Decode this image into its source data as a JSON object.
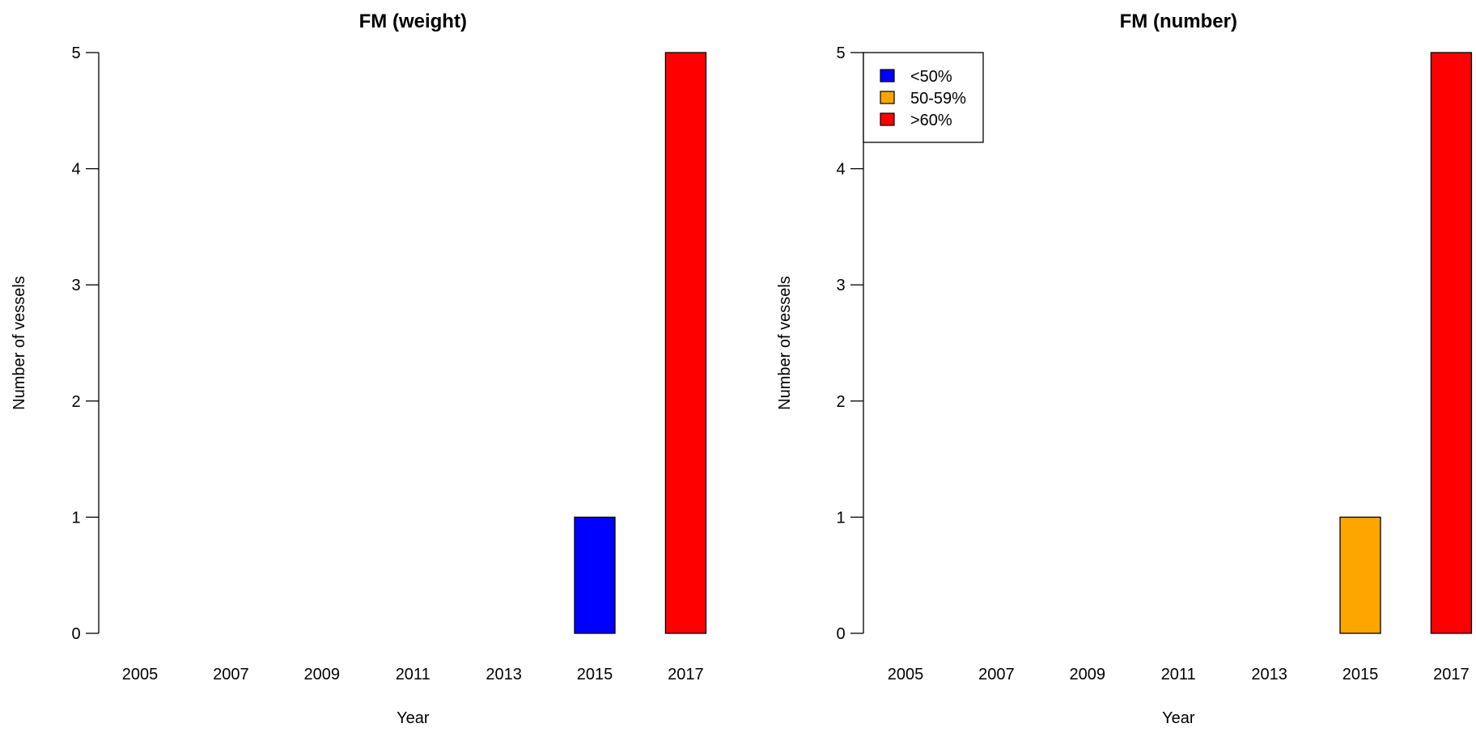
{
  "chart_data": [
    {
      "type": "bar",
      "title": "FM (weight)",
      "xlabel": "Year",
      "ylabel": "Number of vessels",
      "ylim": [
        0,
        5
      ],
      "yticks": [
        "0",
        "1",
        "2",
        "3",
        "4",
        "5"
      ],
      "categories": [
        "2005",
        "2006",
        "2007",
        "2008",
        "2009",
        "2010",
        "2011",
        "2012",
        "2013",
        "2014",
        "2015",
        "2016",
        "2017"
      ],
      "x_tick_labels": [
        "2005",
        "",
        "2007",
        "",
        "2009",
        "",
        "2011",
        "",
        "2013",
        "",
        "2015",
        "",
        "2017"
      ],
      "values": [
        0,
        0,
        0,
        0,
        0,
        0,
        0,
        0,
        0,
        0,
        1,
        0,
        5
      ],
      "bar_groups": [
        "",
        "",
        "",
        "",
        "",
        "",
        "",
        "",
        "",
        "",
        "<50%",
        "",
        ">60%"
      ],
      "legend": null
    },
    {
      "type": "bar",
      "title": "FM (number)",
      "xlabel": "Year",
      "ylabel": "Number of vessels",
      "ylim": [
        0,
        5
      ],
      "yticks": [
        "0",
        "1",
        "2",
        "3",
        "4",
        "5"
      ],
      "categories": [
        "2005",
        "2006",
        "2007",
        "2008",
        "2009",
        "2010",
        "2011",
        "2012",
        "2013",
        "2014",
        "2015",
        "2016",
        "2017"
      ],
      "x_tick_labels": [
        "2005",
        "",
        "2007",
        "",
        "2009",
        "",
        "2011",
        "",
        "2013",
        "",
        "2015",
        "",
        "2017"
      ],
      "values": [
        0,
        0,
        0,
        0,
        0,
        0,
        0,
        0,
        0,
        0,
        1,
        0,
        5
      ],
      "bar_groups": [
        "",
        "",
        "",
        "",
        "",
        "",
        "",
        "",
        "",
        "",
        "50-59%",
        "",
        ">60%"
      ],
      "legend": {
        "placement": "top-left",
        "entries": [
          {
            "label": "<50%",
            "color": "#0000ff"
          },
          {
            "label": "50-59%",
            "color": "#ffa500"
          },
          {
            "label": ">60%",
            "color": "#ff0000"
          }
        ]
      }
    }
  ],
  "group_colors": {
    "<50%": "#0000ff",
    "50-59%": "#ffa500",
    ">60%": "#ff0000"
  }
}
